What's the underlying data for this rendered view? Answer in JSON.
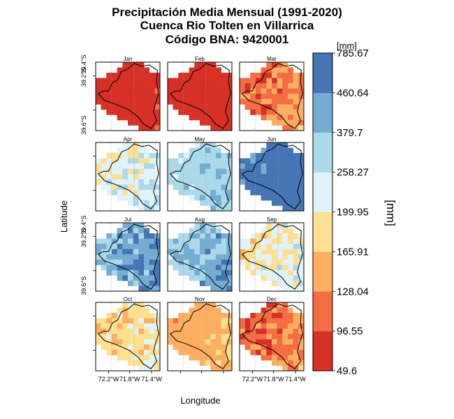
{
  "chart_data": {
    "type": "heatmap",
    "title": [
      "Precipitación Media Mensual (1991-2020)",
      "Cuenca Rio Tolten en Villarrica",
      "Código BNA: 9420001"
    ],
    "xlabel": "Longitude",
    "ylabel": "Latitude",
    "x_tick_labels": [
      "72.2°W",
      "71.8°W",
      "71.4°W"
    ],
    "y_tick_labels": [
      "39.2°S",
      "39.4°S",
      "39.6°S"
    ],
    "colorbar": {
      "unit_label": "[mm]",
      "title": "[mm]",
      "breaks": [
        "785.67",
        "460.64",
        "379.7",
        "258.27",
        "199.95",
        "165.91",
        "128.04",
        "96.55",
        "49.6"
      ],
      "colors": [
        "#d73027",
        "#f46d43",
        "#fdae61",
        "#fee090",
        "#e0f3f8",
        "#abd9e9",
        "#74add1",
        "#4575b4"
      ]
    },
    "panels": [
      {
        "month": "Jan",
        "mean_class": 0,
        "spread": 0.4
      },
      {
        "month": "Feb",
        "mean_class": 0,
        "spread": 0.3
      },
      {
        "month": "Mar",
        "mean_class": 1.2,
        "spread": 0.9
      },
      {
        "month": "Apr",
        "mean_class": 4.0,
        "spread": 0.9
      },
      {
        "month": "May",
        "mean_class": 5.0,
        "spread": 0.6
      },
      {
        "month": "Jun",
        "mean_class": 7.0,
        "spread": 0.5
      },
      {
        "month": "Jul",
        "mean_class": 6.0,
        "spread": 0.9
      },
      {
        "month": "Aug",
        "mean_class": 5.6,
        "spread": 0.9
      },
      {
        "month": "Sep",
        "mean_class": 3.6,
        "spread": 1.0
      },
      {
        "month": "Oct",
        "mean_class": 3.0,
        "spread": 0.9
      },
      {
        "month": "Nov",
        "mean_class": 2.1,
        "spread": 0.5
      },
      {
        "month": "Dec",
        "mean_class": 1.1,
        "spread": 0.9
      }
    ]
  }
}
